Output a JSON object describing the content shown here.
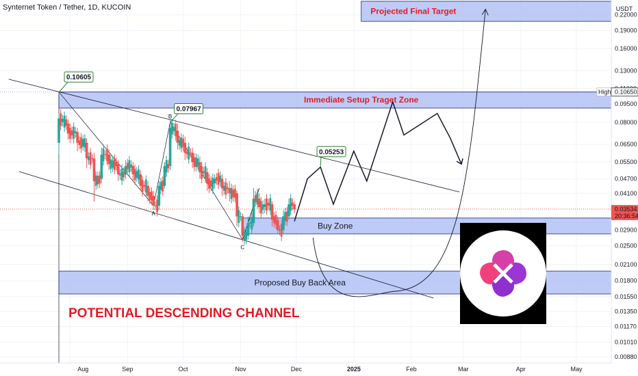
{
  "header": {
    "title": "Synternet Token / Tether, 1D, KUCOIN"
  },
  "colors": {
    "up": "#26a69a",
    "down": "#ef5350",
    "zone_fill": "#aab9f4",
    "zone_stroke": "#1a237e",
    "red_text": "#e31b23",
    "price_tag": "#ef5350"
  },
  "chart_data": {
    "type": "candlestick",
    "title": "Synternet Token / Tether, 1D, KUCOIN",
    "y_scale": "log",
    "y_unit": "USDT",
    "ylim": [
      0.0083,
      0.253
    ],
    "x_tick_labels": [
      "Aug",
      "Sep",
      "Oct",
      "Nov",
      "Dec",
      "2025",
      "Feb",
      "Mar",
      "Apr",
      "May"
    ],
    "y_tick_labels": [
      "0.22000",
      "0.19000",
      "0.16000",
      "0.13000",
      "0.11000",
      "0.09500",
      "0.08000",
      "0.06500",
      "0.05500",
      "0.04700",
      "0.04100",
      "0.03534",
      "0.02900",
      "0.02500",
      "0.02100",
      "0.01800",
      "0.01550",
      "0.01350",
      "0.01170",
      "0.01010",
      "0.00880"
    ],
    "y_ticks": [
      0.22,
      0.19,
      0.16,
      0.13,
      0.11,
      0.095,
      0.08,
      0.065,
      0.055,
      0.047,
      0.041,
      0.029,
      0.025,
      0.021,
      0.018,
      0.0155,
      0.0135,
      0.0117,
      0.0101,
      0.0088
    ],
    "high": {
      "label": "High",
      "value": "0.10650"
    },
    "last_price": {
      "value": "0.03534",
      "countdown": "20:36:54"
    },
    "series": [
      {
        "points": [
          {
            "d": "Jul 26",
            "o": 0.066,
            "c": 0.083,
            "h": 0.087,
            "l": 0.059
          },
          {
            "d": "Jul 31",
            "o": 0.079,
            "c": 0.072,
            "h": 0.082,
            "l": 0.068
          },
          {
            "d": "Aug 5",
            "o": 0.073,
            "c": 0.066,
            "h": 0.076,
            "l": 0.061
          },
          {
            "d": "Aug 10",
            "o": 0.066,
            "c": 0.057,
            "h": 0.069,
            "l": 0.052
          },
          {
            "d": "Aug 14",
            "o": 0.057,
            "c": 0.046,
            "h": 0.06,
            "l": 0.038
          },
          {
            "d": "Aug 18",
            "o": 0.047,
            "c": 0.059,
            "h": 0.063,
            "l": 0.045
          },
          {
            "d": "Aug 22",
            "o": 0.059,
            "c": 0.054,
            "h": 0.062,
            "l": 0.051
          },
          {
            "d": "Aug 27",
            "o": 0.054,
            "c": 0.049,
            "h": 0.056,
            "l": 0.046
          },
          {
            "d": "Aug 31",
            "o": 0.049,
            "c": 0.053,
            "h": 0.056,
            "l": 0.047
          },
          {
            "d": "Sep 4",
            "o": 0.053,
            "c": 0.049,
            "h": 0.055,
            "l": 0.046
          },
          {
            "d": "Sep 8",
            "o": 0.049,
            "c": 0.044,
            "h": 0.051,
            "l": 0.042
          },
          {
            "d": "Sep 12",
            "o": 0.044,
            "c": 0.04,
            "h": 0.046,
            "l": 0.038
          },
          {
            "d": "Sep 15",
            "o": 0.04,
            "c": 0.0365,
            "h": 0.042,
            "l": 0.035
          },
          {
            "d": "Sep 18",
            "o": 0.0365,
            "c": 0.044,
            "h": 0.046,
            "l": 0.035
          },
          {
            "d": "Sep 21",
            "o": 0.044,
            "c": 0.053,
            "h": 0.055,
            "l": 0.043
          },
          {
            "d": "Sep 24",
            "o": 0.053,
            "c": 0.076,
            "h": 0.083,
            "l": 0.051
          },
          {
            "d": "Sep 28",
            "o": 0.074,
            "c": 0.066,
            "h": 0.079,
            "l": 0.062
          },
          {
            "d": "Oct 2",
            "o": 0.066,
            "c": 0.06,
            "h": 0.07,
            "l": 0.056
          },
          {
            "d": "Oct 6",
            "o": 0.06,
            "c": 0.055,
            "h": 0.063,
            "l": 0.052
          },
          {
            "d": "Oct 10",
            "o": 0.055,
            "c": 0.05,
            "h": 0.058,
            "l": 0.047
          },
          {
            "d": "Oct 14",
            "o": 0.05,
            "c": 0.045,
            "h": 0.052,
            "l": 0.042
          },
          {
            "d": "Oct 18",
            "o": 0.045,
            "c": 0.047,
            "h": 0.049,
            "l": 0.043
          },
          {
            "d": "Oct 22",
            "o": 0.047,
            "c": 0.043,
            "h": 0.049,
            "l": 0.04
          },
          {
            "d": "Oct 26",
            "o": 0.043,
            "c": 0.041,
            "h": 0.046,
            "l": 0.038
          },
          {
            "d": "Oct 30",
            "o": 0.041,
            "c": 0.033,
            "h": 0.042,
            "l": 0.03
          },
          {
            "d": "Nov 2",
            "o": 0.033,
            "c": 0.0275,
            "h": 0.034,
            "l": 0.026
          },
          {
            "d": "Nov 5",
            "o": 0.0275,
            "c": 0.031,
            "h": 0.033,
            "l": 0.0265
          },
          {
            "d": "Nov 8",
            "o": 0.031,
            "c": 0.039,
            "h": 0.043,
            "l": 0.03
          },
          {
            "d": "Nov 11",
            "o": 0.039,
            "c": 0.036,
            "h": 0.041,
            "l": 0.034
          },
          {
            "d": "Nov 14",
            "o": 0.036,
            "c": 0.037,
            "h": 0.039,
            "l": 0.034
          },
          {
            "d": "Nov 18",
            "o": 0.037,
            "c": 0.032,
            "h": 0.038,
            "l": 0.03
          },
          {
            "d": "Nov 21",
            "o": 0.032,
            "c": 0.029,
            "h": 0.033,
            "l": 0.028
          },
          {
            "d": "Nov 24",
            "o": 0.029,
            "c": 0.033,
            "h": 0.035,
            "l": 0.028
          },
          {
            "d": "Nov 27",
            "o": 0.033,
            "c": 0.037,
            "h": 0.039,
            "l": 0.032
          },
          {
            "d": "Nov 30",
            "o": 0.037,
            "c": 0.0353,
            "h": 0.038,
            "l": 0.034
          }
        ]
      }
    ],
    "zones": [
      {
        "label": "Projected Final Target",
        "high": 0.25,
        "low": 0.207
      },
      {
        "label": "Immediate Setup Traget Zone",
        "high": 0.1065,
        "low": 0.0915
      },
      {
        "label": "Buy Zone",
        "high": 0.0325,
        "low": 0.028
      },
      {
        "label": "Proposed Buy Back Area",
        "high": 0.0197,
        "low": 0.0159
      }
    ],
    "callouts": [
      {
        "label": "0.10605",
        "value": 0.10605,
        "date": "Jul 26"
      },
      {
        "label": "0.07967",
        "value": 0.07967,
        "date": "Sep 24"
      },
      {
        "label": "0.05253",
        "value": 0.05253,
        "date": "Dec 14"
      }
    ],
    "wave_points": [
      {
        "label": "A",
        "value": 0.0365,
        "date": "Sep 15"
      },
      {
        "label": "B",
        "value": 0.08,
        "date": "Sep 24"
      },
      {
        "label": "C",
        "value": 0.0265,
        "date": "Nov 2"
      }
    ],
    "channel": {
      "upper": [
        {
          "date": "Jul 26",
          "value": 0.1065
        },
        {
          "date": "Feb 27",
          "value": 0.0415
        }
      ],
      "lower": [
        {
          "date": "Jul 26",
          "value": 0.0505
        },
        {
          "date": "Feb 13",
          "value": 0.0153
        }
      ],
      "upper_extension": [
        {
          "date": "Jul 20",
          "value": 0.12
        }
      ]
    },
    "projection_path": [
      {
        "date": "Nov 30",
        "value": 0.0315
      },
      {
        "date": "Dec 7",
        "value": 0.047
      },
      {
        "date": "Dec 14",
        "value": 0.0525
      },
      {
        "date": "Dec 21",
        "value": 0.037
      },
      {
        "date": "Jan 1",
        "value": 0.061
      },
      {
        "date": "Jan 8",
        "value": 0.046
      },
      {
        "date": "Jan 22",
        "value": 0.097
      },
      {
        "date": "Jan 28",
        "value": 0.071
      },
      {
        "date": "Feb 15",
        "value": 0.087
      },
      {
        "date": "Feb 22",
        "value": 0.069
      },
      {
        "date": "Feb 28",
        "value": 0.054
      }
    ],
    "recovery_curve": [
      {
        "date": "Dec 10",
        "value": 0.027
      },
      {
        "date": "Jan 23",
        "value": 0.0163
      },
      {
        "date": "Mar 13",
        "value": 0.232
      }
    ],
    "annotations": [
      "POTENTIAL DESCENDING CHANNEL"
    ]
  }
}
